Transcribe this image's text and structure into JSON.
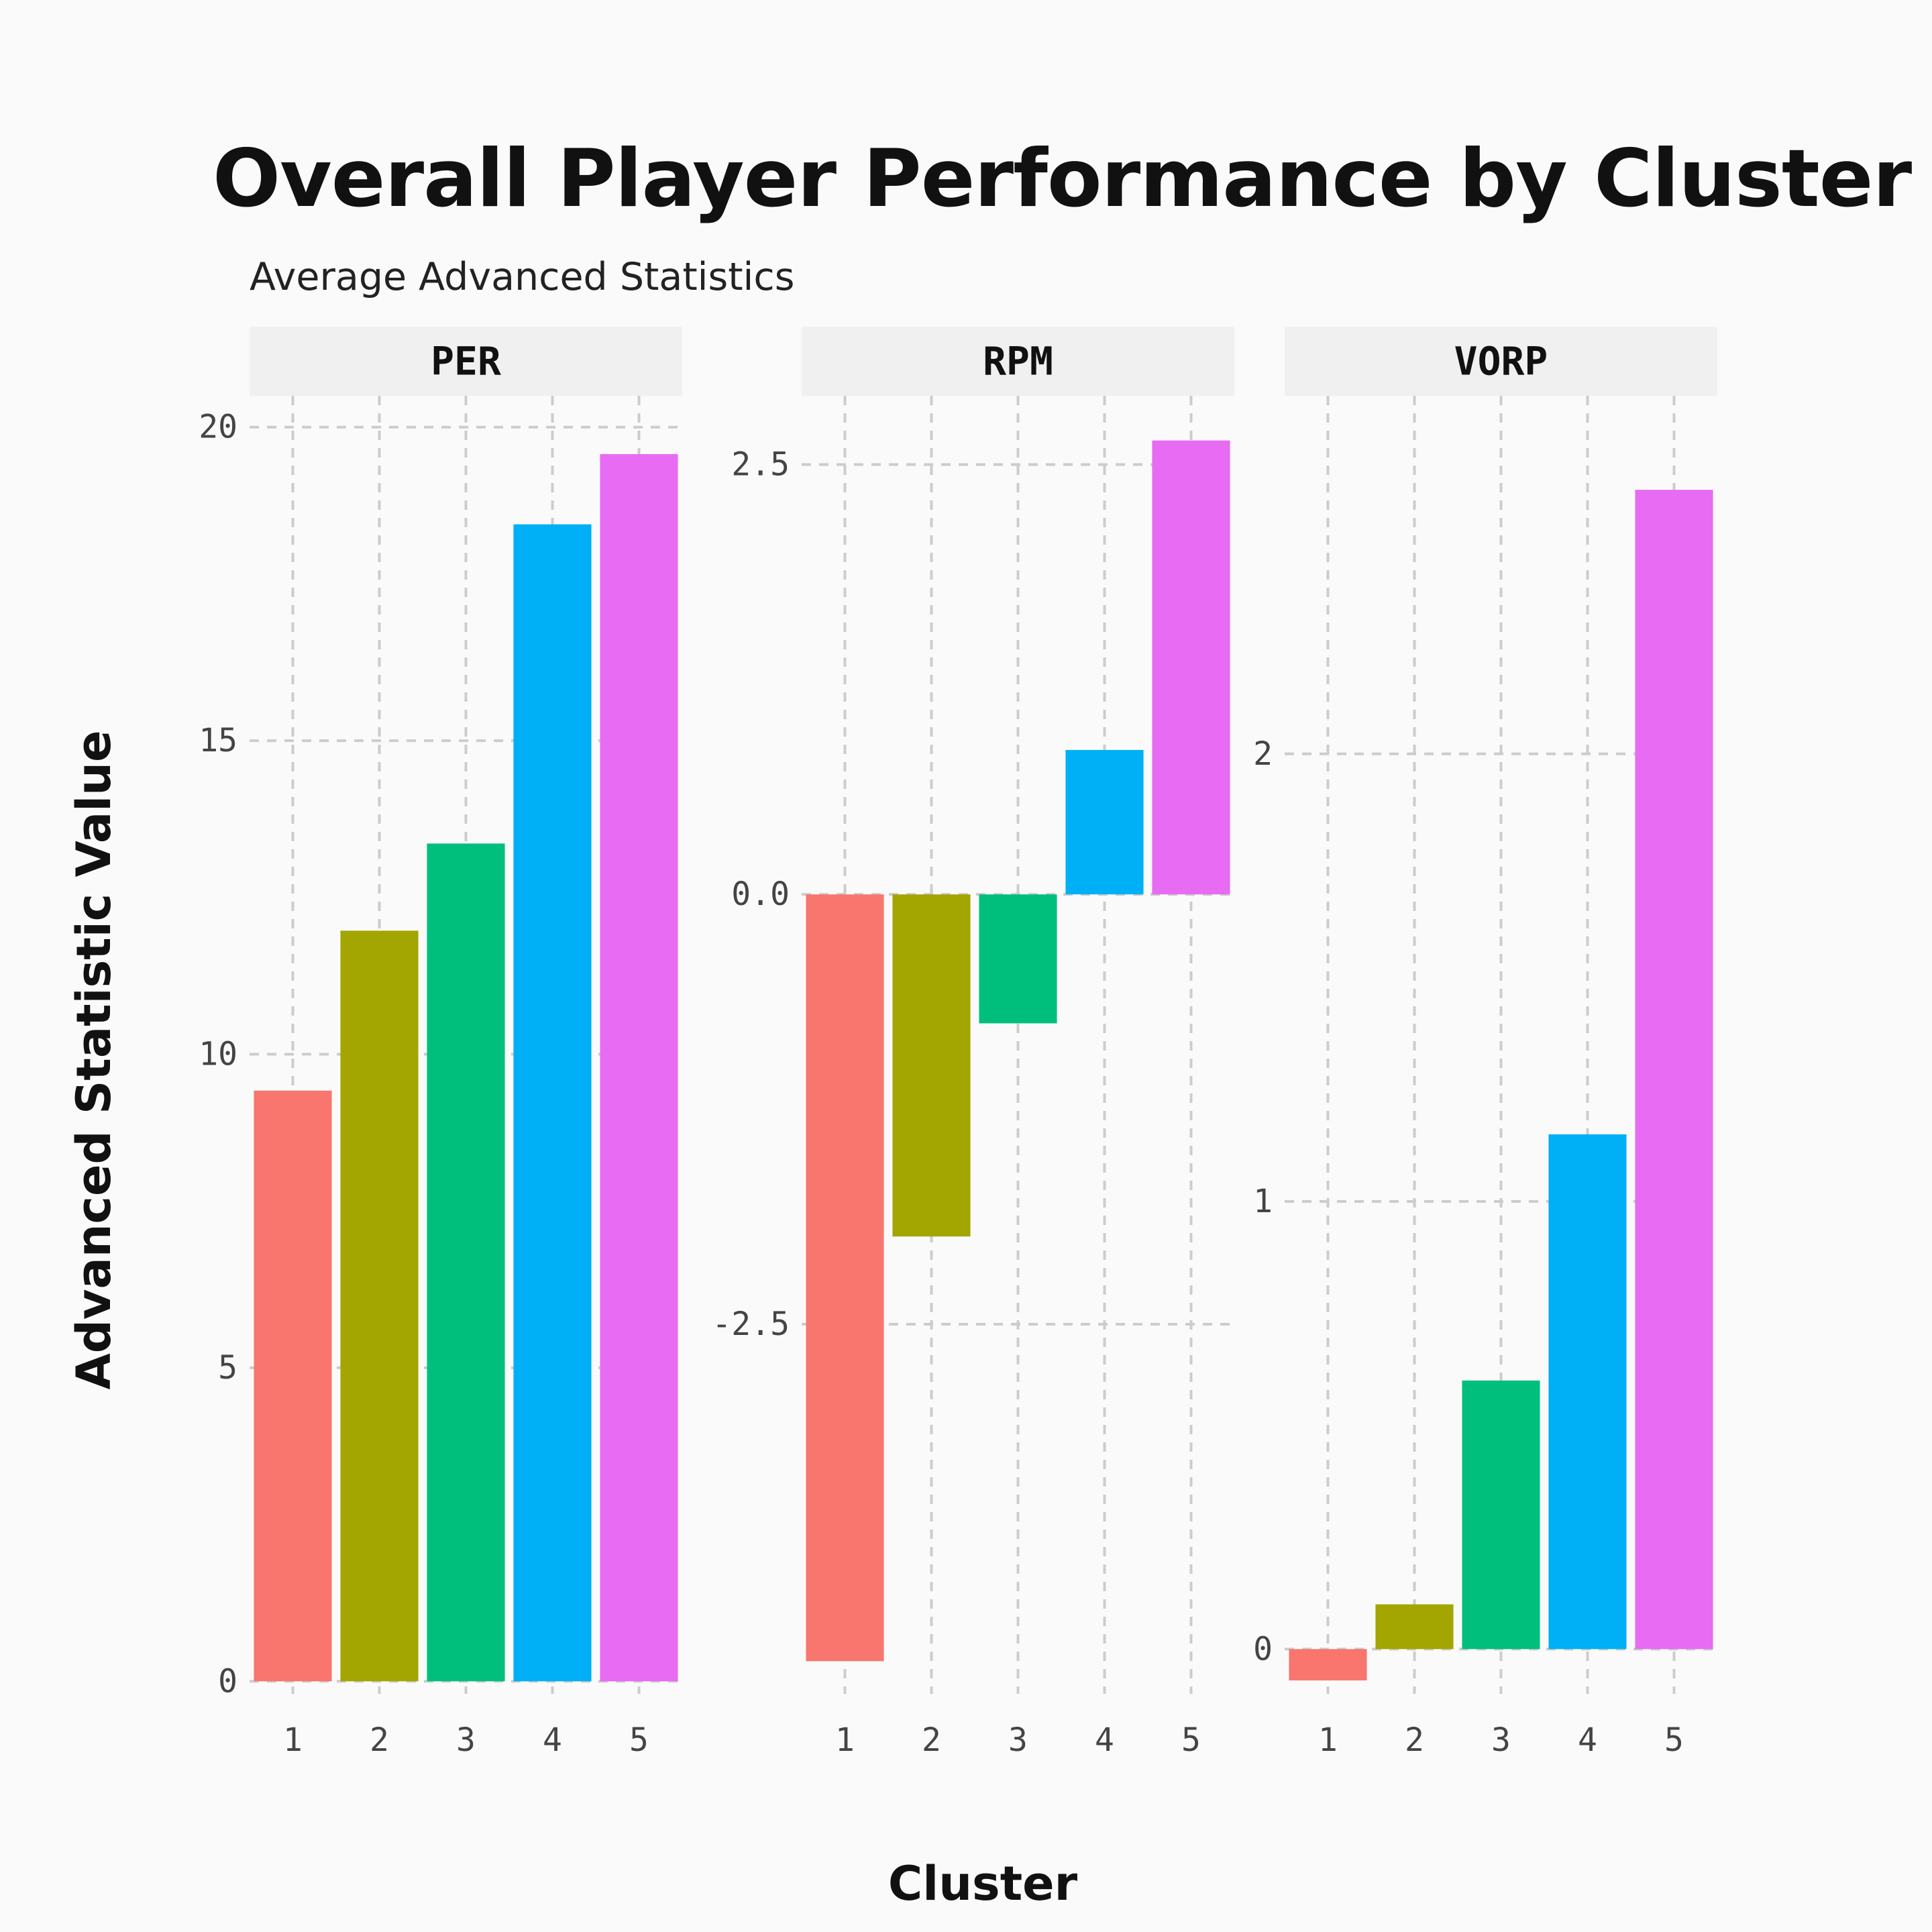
{
  "chart_data": {
    "type": "bar",
    "title": "Overall Player Performance by Cluster",
    "subtitle": "Average Advanced Statistics",
    "xlabel": "Cluster",
    "ylabel": "Advanced Statistic Value",
    "grid": true,
    "legend": "none",
    "colors": [
      "#F8766D",
      "#A3A500",
      "#00BF7D",
      "#00B0F6",
      "#E76BF3"
    ],
    "panels": [
      {
        "name": "PER",
        "categories": [
          "1",
          "2",
          "3",
          "4",
          "5"
        ],
        "values": [
          9.42,
          11.97,
          13.36,
          18.45,
          19.57
        ],
        "ylim": [
          -0.2,
          20.5
        ],
        "yticks": [
          0,
          5,
          10,
          15,
          20
        ],
        "ytick_labels": [
          "0",
          "5",
          "10",
          "15",
          "20"
        ]
      },
      {
        "name": "RPM",
        "categories": [
          "1",
          "2",
          "3",
          "4",
          "5"
        ],
        "values": [
          -4.46,
          -1.99,
          -0.75,
          0.84,
          2.64
        ],
        "ylim": [
          -4.65,
          2.9
        ],
        "yticks": [
          -2.5,
          0.0,
          2.5
        ],
        "ytick_labels": [
          "-2.5",
          "0.0",
          "2.5"
        ]
      },
      {
        "name": "VORP",
        "categories": [
          "1",
          "2",
          "3",
          "4",
          "5"
        ],
        "values": [
          -0.07,
          0.1,
          0.6,
          1.15,
          2.59
        ],
        "ylim": [
          -0.1,
          2.8
        ],
        "yticks": [
          0,
          1,
          2
        ],
        "ytick_labels": [
          "0",
          "1",
          "2"
        ]
      }
    ]
  }
}
